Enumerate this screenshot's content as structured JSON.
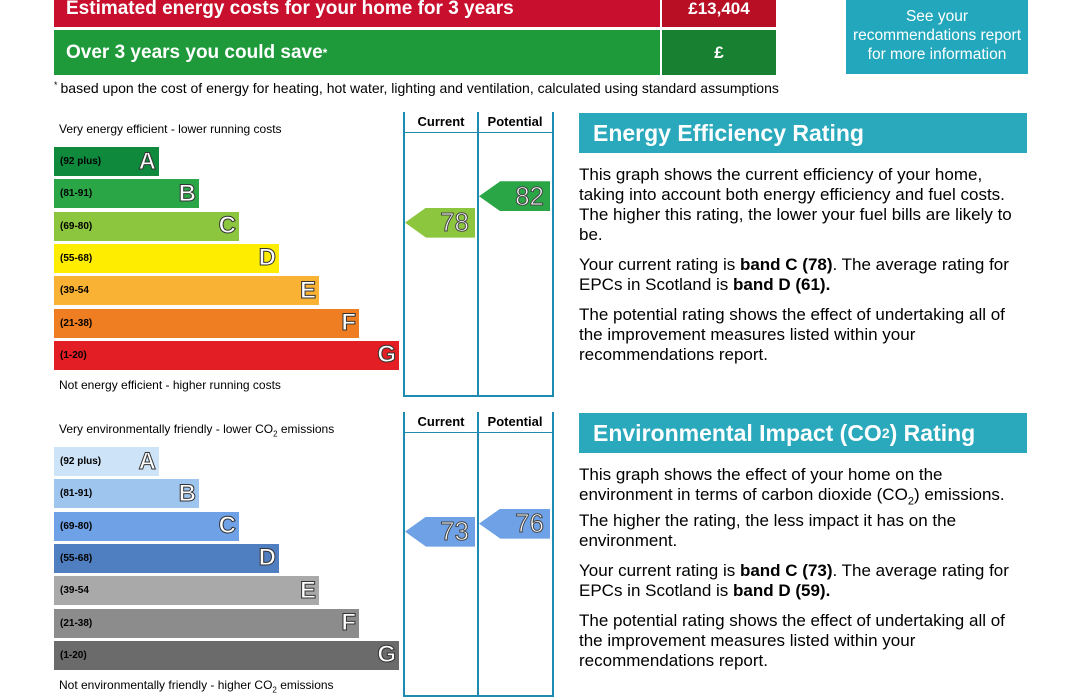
{
  "costs": {
    "estimated_label": "Estimated energy costs for your home for 3 years",
    "estimated_value": "£13,404",
    "save_label": "Over 3 years you could save",
    "save_marker": "*",
    "save_value": "£",
    "see_report": "See your recommendations report for more information"
  },
  "footnote": {
    "marker": "*",
    "text": "based upon the cost of energy for heating, hot water, lighting and ventilation, calculated using standard assumptions"
  },
  "colors": {
    "cost_red": "#c8102e",
    "save_green": "#1f9a3a",
    "accent_teal": "#2aa9bd"
  },
  "energy_chart": {
    "top_note": "Very energy efficient - lower running costs",
    "bottom_note": "Not energy efficient - higher running costs",
    "current_header": "Current",
    "potential_header": "Potential",
    "bands": [
      {
        "range": "(92 plus)",
        "letter": "A",
        "color": "#0f8a3c"
      },
      {
        "range": "(81-91)",
        "letter": "B",
        "color": "#2aa647"
      },
      {
        "range": "(69-80)",
        "letter": "C",
        "color": "#8cc63f"
      },
      {
        "range": "(55-68)",
        "letter": "D",
        "color": "#ffed00"
      },
      {
        "range": "(39-54",
        "letter": "E",
        "color": "#f9b233"
      },
      {
        "range": "(21-38)",
        "letter": "F",
        "color": "#ef7d22"
      },
      {
        "range": "(1-20)",
        "letter": "G",
        "color": "#e31e24"
      }
    ],
    "current": 78,
    "current_band": "C",
    "potential": 82,
    "potential_band": "B"
  },
  "env_chart": {
    "top_note_pre": "Very environmentally friendly - lower CO",
    "top_note_sub": "2",
    "top_note_post": " emissions",
    "bottom_note_pre": "Not environmentally friendly - higher CO",
    "bottom_note_sub": "2",
    "bottom_note_post": " emissions",
    "current_header": "Current",
    "potential_header": "Potential",
    "bands": [
      {
        "range": "(92 plus)",
        "letter": "A",
        "color": "#cde3f7"
      },
      {
        "range": "(81-91)",
        "letter": "B",
        "color": "#9ec5ee"
      },
      {
        "range": "(69-80)",
        "letter": "C",
        "color": "#6ea1e5"
      },
      {
        "range": "(55-68)",
        "letter": "D",
        "color": "#4f7fc1"
      },
      {
        "range": "(39-54",
        "letter": "E",
        "color": "#a9a9a9"
      },
      {
        "range": "(21-38)",
        "letter": "F",
        "color": "#8c8c8c"
      },
      {
        "range": "(1-20)",
        "letter": "G",
        "color": "#6b6b6b"
      }
    ],
    "current": 73,
    "current_band": "C",
    "potential": 76,
    "potential_band": "C"
  },
  "energy_info": {
    "title": "Energy Efficiency Rating",
    "para1": "This graph shows the current efficiency of your home, taking into account both energy efficiency and fuel costs. The higher this rating, the lower your fuel bills are likely to be.",
    "para2_pre": "Your current rating is ",
    "para2_bold1": "band C (78)",
    "para2_mid": ". The average rating for EPCs in Scotland is ",
    "para2_bold2": "band D (61).",
    "para3": "The potential rating shows the effect of undertaking all of the improvement measures listed within your recommendations report."
  },
  "env_info": {
    "title_pre": "Environmental Impact (CO",
    "title_sub": "2",
    "title_post": ") Rating",
    "para1_pre": "This graph shows the effect of your home on the environment in terms of carbon dioxide (CO",
    "para1_sub": "2",
    "para1_post": ") emissions. The higher the rating, the less impact it has on the environment.",
    "para2_pre": "Your current rating is ",
    "para2_bold1": "band C (73)",
    "para2_mid": ". The average rating for EPCs in Scotland is ",
    "para2_bold2": "band D (59).",
    "para3": "The potential rating shows the effect of undertaking all of the improvement measures listed within your recommendations report."
  }
}
